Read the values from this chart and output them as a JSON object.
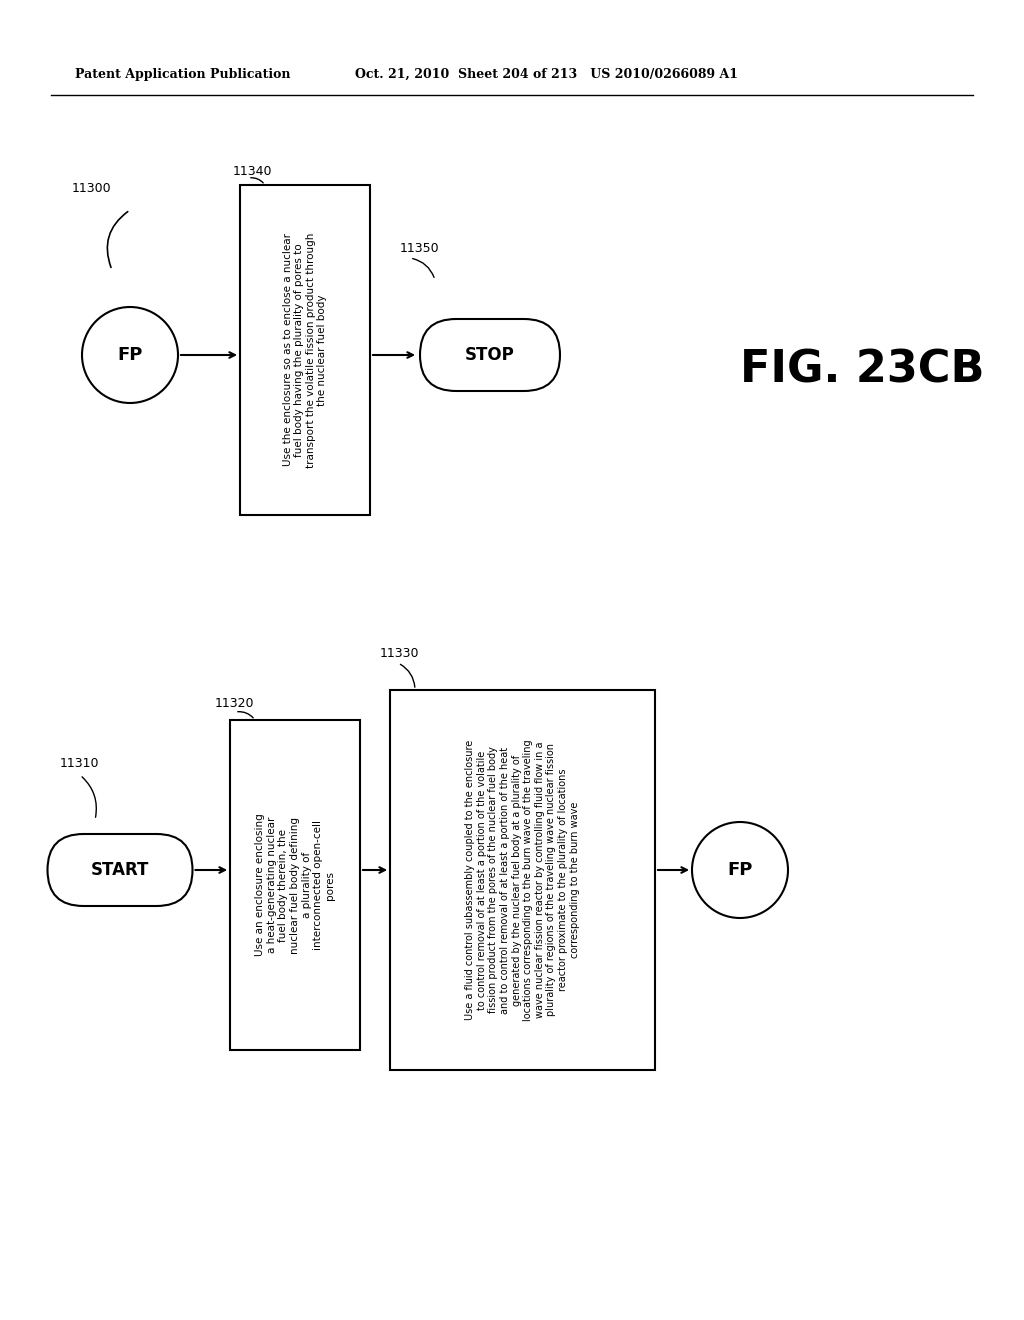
{
  "header_left": "Patent Application Publication",
  "header_mid": "Oct. 21, 2010  Sheet 204 of 213   US 2010/0266089 A1",
  "fig_label": "FIG. 23CB",
  "background_color": "#ffffff",
  "top_flow": {
    "ref_11300": "11300",
    "ref_11340": "11340",
    "ref_11350": "11350",
    "fp_text": "FP",
    "box1_text": "Use the enclosure so as to enclose a nuclear\nfuel body having the plurality of pores to\ntransport the volatile fission product through\nthe nuclear fuel body",
    "stop_text": "STOP"
  },
  "bottom_flow": {
    "ref_11310": "11310",
    "ref_11320": "11320",
    "ref_11330": "11330",
    "start_text": "START",
    "box1_text": "Use an enclosure enclosing\na heat-generating nuclear\nfuel body therein, the\nnuclear fuel body defining\na plurality of\ninterconnected open-cell\npores",
    "box2_text": "Use a fluid control subassembly coupled to the enclosure\nto control removal of at least a portion of the volatile\nfission product from the pores of the nuclear fuel body\nand to control removal of at least a portion of the heat\ngenerated by the nuclear fuel body at a plurality of\nlocations corresponding to the burn wave of the traveling\nwave nuclear fission reactor by controlling fluid flow in a\nplurality of regions of the traveling wave nuclear fission\nreactor proximate to the plurality of locations\ncorresponding to the burn wave",
    "fp_text": "FP"
  }
}
